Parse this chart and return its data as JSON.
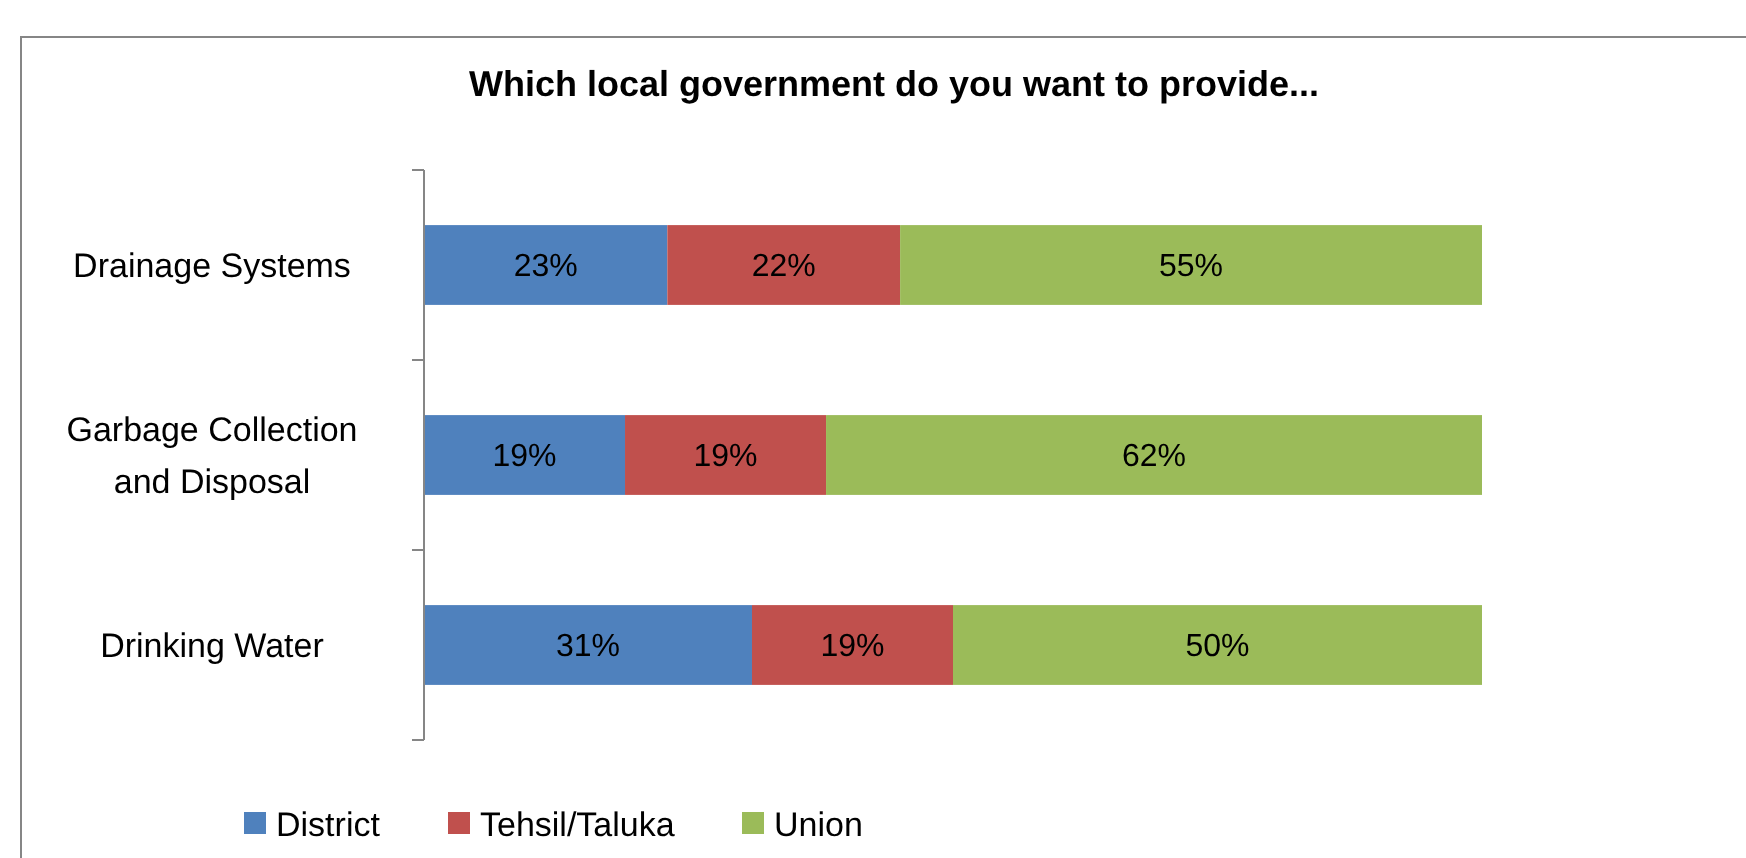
{
  "chart_data": {
    "type": "bar",
    "orientation": "horizontal",
    "stacked": true,
    "title": "Which local government do you want to provide...",
    "categories": [
      "Drainage Systems",
      "Garbage Collection and Disposal",
      "Drinking Water"
    ],
    "series": [
      {
        "name": "District",
        "color": "#4f81bd",
        "values": [
          23,
          19,
          31
        ],
        "value_labels": [
          "23%",
          "19%",
          "31%"
        ]
      },
      {
        "name": "Tehsil/Taluka",
        "color": "#c0504d",
        "values": [
          22,
          19,
          19
        ],
        "value_labels": [
          "22%",
          "19%",
          "19%"
        ]
      },
      {
        "name": "Union",
        "color": "#9bbb59",
        "values": [
          55,
          62,
          50
        ],
        "value_labels": [
          "55%",
          "62%",
          "50%"
        ]
      }
    ],
    "legend": "bottom",
    "grid": false
  }
}
